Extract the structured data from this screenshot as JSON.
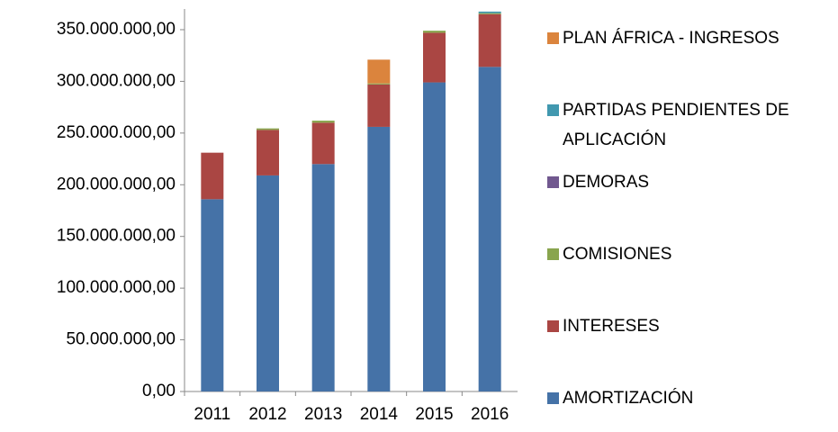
{
  "chart_data": {
    "type": "stacked_bar",
    "categories": [
      "2011",
      "2012",
      "2013",
      "2014",
      "2015",
      "2016"
    ],
    "series": [
      {
        "name": "AMORTIZACIÓN",
        "color": "#4572a7",
        "values": [
          186000000,
          209000000,
          220000000,
          256000000,
          299000000,
          314000000
        ]
      },
      {
        "name": "INTERESES",
        "color": "#aa4643",
        "values": [
          45000000,
          44000000,
          40000000,
          41000000,
          48000000,
          51000000
        ]
      },
      {
        "name": "COMISIONES",
        "color": "#89a54e",
        "values": [
          0,
          1500000,
          2000000,
          1000000,
          2000000,
          1000000
        ]
      },
      {
        "name": "DEMORAS",
        "color": "#71588f",
        "values": [
          0,
          0,
          0,
          0,
          0,
          0
        ]
      },
      {
        "name": "PARTIDAS PENDIENTES DE APLICACIÓN",
        "color": "#4198af",
        "values": [
          0,
          0,
          0,
          0,
          0,
          1500000
        ]
      },
      {
        "name": "PLAN ÁFRICA - INGRESOS",
        "color": "#db843d",
        "values": [
          0,
          0,
          0,
          23000000,
          0,
          0
        ]
      }
    ],
    "ylim": [
      0,
      370000000
    ],
    "yticks": [
      {
        "value": 0,
        "label": "0,00"
      },
      {
        "value": 50000000,
        "label": "50.000.000,00"
      },
      {
        "value": 100000000,
        "label": "100.000.000,00"
      },
      {
        "value": 150000000,
        "label": "150.000.000,00"
      },
      {
        "value": 200000000,
        "label": "200.000.000,00"
      },
      {
        "value": 250000000,
        "label": "250.000.000,00"
      },
      {
        "value": 300000000,
        "label": "300.000.000,00"
      },
      {
        "value": 350000000,
        "label": "350.000.000,00"
      }
    ],
    "grid": false,
    "legend": "right"
  }
}
